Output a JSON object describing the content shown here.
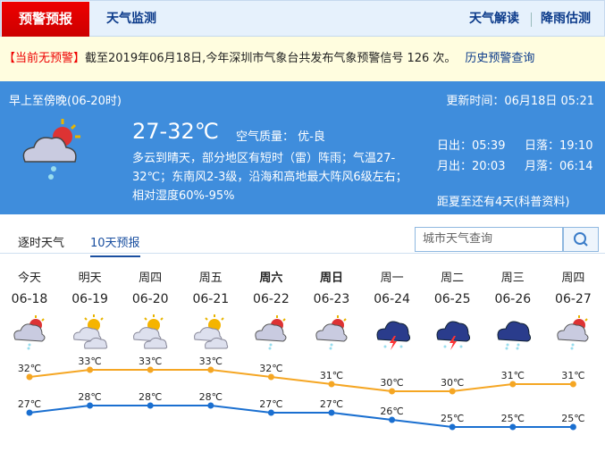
{
  "nav": {
    "active": "预警预报",
    "monitor": "天气监测",
    "interpret": "天气解读",
    "rain": "降雨估测"
  },
  "alert": {
    "status": "【当前无预警】",
    "text": "截至2019年06月18日,今年深圳市气象台共发布气象预警信号 126 次。",
    "link": "历史预警查询"
  },
  "today": {
    "period": "早上至傍晚(06-20时)",
    "updated": "更新时间：06月18日 05:21",
    "temp": "27-32℃",
    "aqi": "空气质量： 优-良",
    "desc1": "多云到晴天，部分地区有短时（雷）阵雨；气温27-",
    "desc2": "32℃；东南风2-3级，沿海和高地最大阵风6级左右；",
    "desc3": "相对湿度60%-95%",
    "sunrise": "日出：05:39",
    "sunset": "日落：19:10",
    "moonrise": "月出：20:03",
    "moonset": "月落：06:14",
    "summer": "距夏至还有4天(科普资料)",
    "icon": "cloud-sun-rain-icon"
  },
  "tabs": {
    "hourly": "逐时天气",
    "tenday": "10天预报"
  },
  "search": {
    "placeholder": "城市天气查询"
  },
  "colors": {
    "high": "#f5a623",
    "low": "#1a6fd0",
    "panel": "#3f8ddc"
  },
  "forecast": [
    {
      "day": "今天",
      "date": "06-18",
      "icon": "shower",
      "high": "32℃",
      "low": "27℃",
      "h": 32,
      "l": 27
    },
    {
      "day": "明天",
      "date": "06-19",
      "icon": "partly-cloudy",
      "high": "33℃",
      "low": "28℃",
      "h": 33,
      "l": 28
    },
    {
      "day": "周四",
      "date": "06-20",
      "icon": "partly-cloudy",
      "high": "33℃",
      "low": "28℃",
      "h": 33,
      "l": 28
    },
    {
      "day": "周五",
      "date": "06-21",
      "icon": "partly-cloudy",
      "high": "33℃",
      "low": "28℃",
      "h": 33,
      "l": 28
    },
    {
      "day": "周六",
      "date": "06-22",
      "icon": "shower",
      "high": "32℃",
      "low": "27℃",
      "h": 32,
      "l": 27,
      "bold": true
    },
    {
      "day": "周日",
      "date": "06-23",
      "icon": "shower",
      "high": "31℃",
      "low": "27℃",
      "h": 31,
      "l": 27,
      "bold": true
    },
    {
      "day": "周一",
      "date": "06-24",
      "icon": "thunderstorm",
      "high": "30℃",
      "low": "26℃",
      "h": 30,
      "l": 26
    },
    {
      "day": "周二",
      "date": "06-25",
      "icon": "thunderstorm",
      "high": "30℃",
      "low": "25℃",
      "h": 30,
      "l": 25
    },
    {
      "day": "周三",
      "date": "06-26",
      "icon": "rain",
      "high": "31℃",
      "low": "25℃",
      "h": 31,
      "l": 25
    },
    {
      "day": "周四",
      "date": "06-27",
      "icon": "shower",
      "high": "31℃",
      "low": "25℃",
      "h": 31,
      "l": 25
    }
  ]
}
